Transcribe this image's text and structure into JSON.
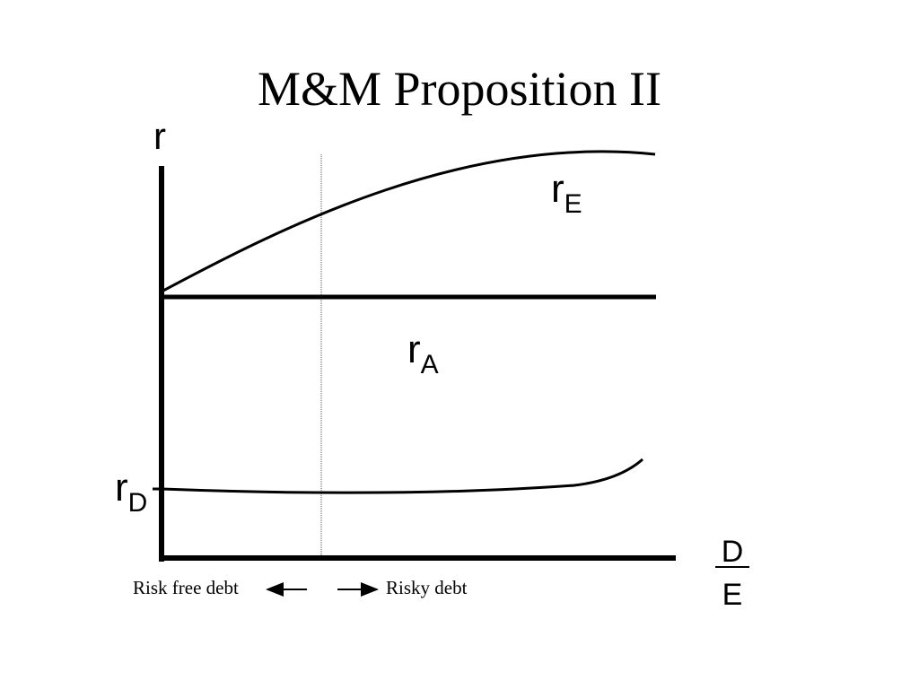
{
  "title": "M&M Proposition II",
  "y_axis_label": "r",
  "x_axis_label": {
    "numerator": "D",
    "denominator": "E"
  },
  "curves": [
    {
      "label": "r",
      "subscript": "E"
    },
    {
      "label": "r",
      "subscript": "A"
    },
    {
      "label": "r",
      "subscript": "D"
    }
  ],
  "annotations": {
    "left": "Risk free debt",
    "right": "Risky debt"
  }
}
